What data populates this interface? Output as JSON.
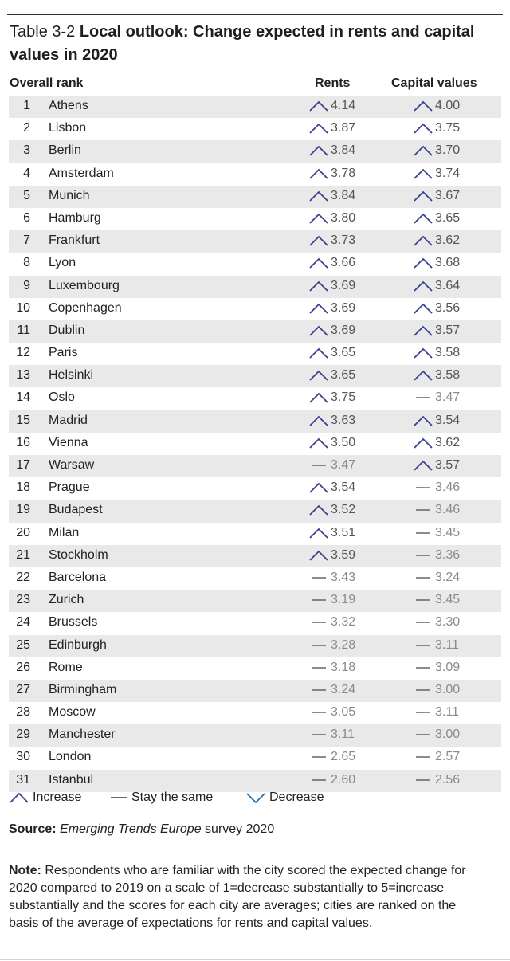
{
  "title": {
    "label": "Table 3-2",
    "main": "Local outlook: Change expected in rents and capital values in 2020"
  },
  "headers": {
    "rank": "Overall rank",
    "rents": "Rents",
    "capital": "Capital values"
  },
  "rows": [
    {
      "rank": "1",
      "city": "Athens",
      "rents": "4.14",
      "rents_trend": "increase",
      "capital": "4.00",
      "capital_trend": "increase"
    },
    {
      "rank": "2",
      "city": "Lisbon",
      "rents": "3.87",
      "rents_trend": "increase",
      "capital": "3.75",
      "capital_trend": "increase"
    },
    {
      "rank": "3",
      "city": "Berlin",
      "rents": "3.84",
      "rents_trend": "increase",
      "capital": "3.70",
      "capital_trend": "increase"
    },
    {
      "rank": "4",
      "city": "Amsterdam",
      "rents": "3.78",
      "rents_trend": "increase",
      "capital": "3.74",
      "capital_trend": "increase"
    },
    {
      "rank": "5",
      "city": "Munich",
      "rents": "3.84",
      "rents_trend": "increase",
      "capital": "3.67",
      "capital_trend": "increase"
    },
    {
      "rank": "6",
      "city": "Hamburg",
      "rents": "3.80",
      "rents_trend": "increase",
      "capital": "3.65",
      "capital_trend": "increase"
    },
    {
      "rank": "7",
      "city": "Frankfurt",
      "rents": "3.73",
      "rents_trend": "increase",
      "capital": "3.62",
      "capital_trend": "increase"
    },
    {
      "rank": "8",
      "city": "Lyon",
      "rents": "3.66",
      "rents_trend": "increase",
      "capital": "3.68",
      "capital_trend": "increase"
    },
    {
      "rank": "9",
      "city": "Luxembourg",
      "rents": "3.69",
      "rents_trend": "increase",
      "capital": "3.64",
      "capital_trend": "increase"
    },
    {
      "rank": "10",
      "city": "Copenhagen",
      "rents": "3.69",
      "rents_trend": "increase",
      "capital": "3.56",
      "capital_trend": "increase"
    },
    {
      "rank": "11",
      "city": "Dublin",
      "rents": "3.69",
      "rents_trend": "increase",
      "capital": "3.57",
      "capital_trend": "increase"
    },
    {
      "rank": "12",
      "city": "Paris",
      "rents": "3.65",
      "rents_trend": "increase",
      "capital": "3.58",
      "capital_trend": "increase"
    },
    {
      "rank": "13",
      "city": "Helsinki",
      "rents": "3.65",
      "rents_trend": "increase",
      "capital": "3.58",
      "capital_trend": "increase"
    },
    {
      "rank": "14",
      "city": "Oslo",
      "rents": "3.75",
      "rents_trend": "increase",
      "capital": "3.47",
      "capital_trend": "same"
    },
    {
      "rank": "15",
      "city": "Madrid",
      "rents": "3.63",
      "rents_trend": "increase",
      "capital": "3.54",
      "capital_trend": "increase"
    },
    {
      "rank": "16",
      "city": "Vienna",
      "rents": "3.50",
      "rents_trend": "increase",
      "capital": "3.62",
      "capital_trend": "increase"
    },
    {
      "rank": "17",
      "city": "Warsaw",
      "rents": "3.47",
      "rents_trend": "same",
      "capital": "3.57",
      "capital_trend": "increase"
    },
    {
      "rank": "18",
      "city": "Prague",
      "rents": "3.54",
      "rents_trend": "increase",
      "capital": "3.46",
      "capital_trend": "same"
    },
    {
      "rank": "19",
      "city": "Budapest",
      "rents": "3.52",
      "rents_trend": "increase",
      "capital": "3.46",
      "capital_trend": "same"
    },
    {
      "rank": "20",
      "city": "Milan",
      "rents": "3.51",
      "rents_trend": "increase",
      "capital": "3.45",
      "capital_trend": "same"
    },
    {
      "rank": "21",
      "city": "Stockholm",
      "rents": "3.59",
      "rents_trend": "increase",
      "capital": "3.36",
      "capital_trend": "same"
    },
    {
      "rank": "22",
      "city": "Barcelona",
      "rents": "3.43",
      "rents_trend": "same",
      "capital": "3.24",
      "capital_trend": "same"
    },
    {
      "rank": "23",
      "city": "Zurich",
      "rents": "3.19",
      "rents_trend": "same",
      "capital": "3.45",
      "capital_trend": "same"
    },
    {
      "rank": "24",
      "city": "Brussels",
      "rents": "3.32",
      "rents_trend": "same",
      "capital": "3.30",
      "capital_trend": "same"
    },
    {
      "rank": "25",
      "city": "Edinburgh",
      "rents": "3.28",
      "rents_trend": "same",
      "capital": "3.11",
      "capital_trend": "same"
    },
    {
      "rank": "26",
      "city": "Rome",
      "rents": "3.18",
      "rents_trend": "same",
      "capital": "3.09",
      "capital_trend": "same"
    },
    {
      "rank": "27",
      "city": "Birmingham",
      "rents": "3.24",
      "rents_trend": "same",
      "capital": "3.00",
      "capital_trend": "same"
    },
    {
      "rank": "28",
      "city": "Moscow",
      "rents": "3.05",
      "rents_trend": "same",
      "capital": "3.11",
      "capital_trend": "same"
    },
    {
      "rank": "29",
      "city": "Manchester",
      "rents": "3.11",
      "rents_trend": "same",
      "capital": "3.00",
      "capital_trend": "same"
    },
    {
      "rank": "30",
      "city": "London",
      "rents": "2.65",
      "rents_trend": "same",
      "capital": "2.57",
      "capital_trend": "same"
    },
    {
      "rank": "31",
      "city": "Istanbul",
      "rents": "2.60",
      "rents_trend": "same",
      "capital": "2.56",
      "capital_trend": "same"
    }
  ],
  "legend": {
    "increase": "Increase",
    "same": "Stay the same",
    "decrease": "Decrease"
  },
  "source": {
    "label": "Source:",
    "publication": "Emerging Trends Europe",
    "rest": " survey 2020"
  },
  "note": {
    "label": "Note:",
    "text": " Respondents who are familiar with the city scored the expected change for 2020 compared to 2019 on a scale of 1=decrease substantially to 5=increase substantially and the scores for each city are averages; cities are ranked on the basis of the average of expectations for rents and capital values."
  },
  "colors": {
    "increase": "#3a3f8f",
    "same": "#8a8a8a",
    "decrease": "#1f6fb2",
    "row_shade": "#e9e9ea"
  }
}
